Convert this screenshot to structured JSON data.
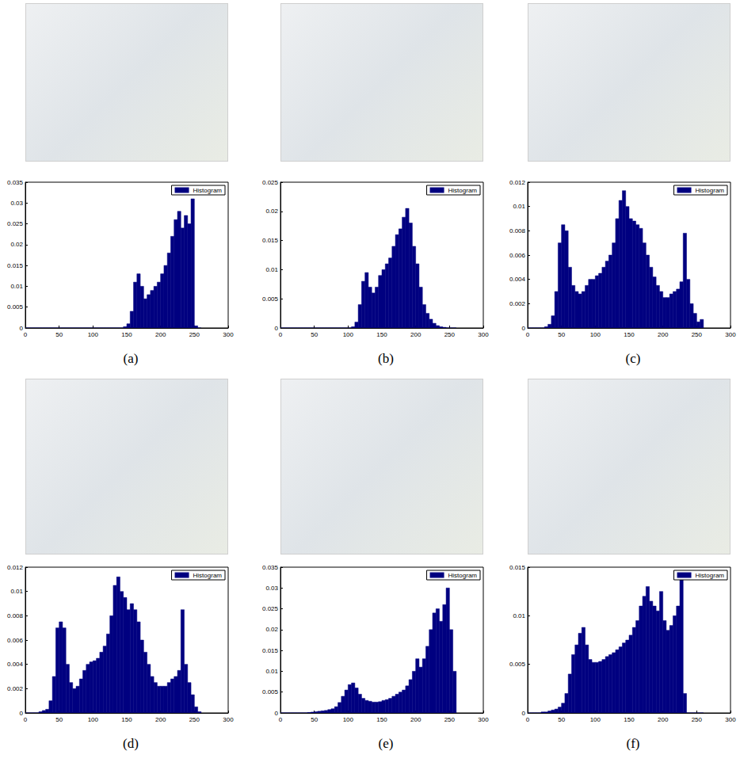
{
  "chart_data": [
    {
      "type": "histogram",
      "title": "(a)",
      "legend": "upper right",
      "grid": false,
      "xlim": [
        0,
        300
      ],
      "xticks": [
        0,
        50,
        100,
        150,
        200,
        250,
        300
      ],
      "ylim": [
        0,
        0.035
      ],
      "yticks": [
        0,
        0.005,
        0.01,
        0.015,
        0.02,
        0.025,
        0.03,
        0.035
      ],
      "bins": [
        0,
        5,
        10,
        15,
        20,
        25,
        30,
        35,
        40,
        45,
        50,
        55,
        60,
        65,
        70,
        75,
        80,
        85,
        90,
        95,
        100,
        105,
        110,
        115,
        120,
        125,
        130,
        135,
        140,
        145,
        150,
        155,
        160,
        165,
        170,
        175,
        180,
        185,
        190,
        195,
        200,
        205,
        210,
        215,
        220,
        225,
        230,
        235,
        240,
        245,
        250,
        255,
        260
      ],
      "series": [
        {
          "name": "Histogram",
          "color": "#000080",
          "values": [
            0,
            0,
            0,
            0,
            0,
            0,
            0,
            0,
            0,
            0,
            0,
            0,
            0,
            0,
            0,
            0,
            0,
            0,
            0,
            0,
            0,
            0,
            0,
            0,
            0,
            0,
            0,
            0,
            0,
            0.0003,
            0.001,
            0.004,
            0.011,
            0.013,
            0.01,
            0.007,
            0.008,
            0.009,
            0.01,
            0.011,
            0.013,
            0.015,
            0.018,
            0.022,
            0.026,
            0.028,
            0.024,
            0.027,
            0.025,
            0.031,
            0.0005,
            0
          ]
        }
      ]
    },
    {
      "type": "histogram",
      "title": "(b)",
      "legend": "upper right",
      "grid": false,
      "xlim": [
        0,
        300
      ],
      "xticks": [
        0,
        50,
        100,
        150,
        200,
        250,
        300
      ],
      "ylim": [
        0,
        0.025
      ],
      "yticks": [
        0,
        0.005,
        0.01,
        0.015,
        0.02,
        0.025
      ],
      "bins": [
        0,
        5,
        10,
        15,
        20,
        25,
        30,
        35,
        40,
        45,
        50,
        55,
        60,
        65,
        70,
        75,
        80,
        85,
        90,
        95,
        100,
        105,
        110,
        115,
        120,
        125,
        130,
        135,
        140,
        145,
        150,
        155,
        160,
        165,
        170,
        175,
        180,
        185,
        190,
        195,
        200,
        205,
        210,
        215,
        220,
        225,
        230,
        235,
        240,
        245,
        250,
        255,
        260
      ],
      "series": [
        {
          "name": "Histogram",
          "color": "#000080",
          "values": [
            0,
            0,
            0,
            0,
            0,
            0,
            0,
            0,
            0,
            0,
            0,
            0,
            0,
            0,
            0,
            0,
            0,
            0,
            0,
            0,
            0,
            0.0002,
            0.001,
            0.004,
            0.008,
            0.0095,
            0.007,
            0.006,
            0.007,
            0.009,
            0.01,
            0.011,
            0.012,
            0.014,
            0.016,
            0.017,
            0.019,
            0.0205,
            0.018,
            0.014,
            0.011,
            0.007,
            0.004,
            0.0025,
            0.0015,
            0.0008,
            0.0004,
            0.0002,
            0.0001,
            0,
            0,
            0
          ]
        }
      ]
    },
    {
      "type": "histogram",
      "title": "(c)",
      "legend": "upper right",
      "grid": false,
      "xlim": [
        0,
        300
      ],
      "xticks": [
        0,
        50,
        100,
        150,
        200,
        250,
        300
      ],
      "ylim": [
        0,
        0.012
      ],
      "yticks": [
        0,
        0.002,
        0.004,
        0.006,
        0.008,
        0.01,
        0.012
      ],
      "bins": [
        0,
        5,
        10,
        15,
        20,
        25,
        30,
        35,
        40,
        45,
        50,
        55,
        60,
        65,
        70,
        75,
        80,
        85,
        90,
        95,
        100,
        105,
        110,
        115,
        120,
        125,
        130,
        135,
        140,
        145,
        150,
        155,
        160,
        165,
        170,
        175,
        180,
        185,
        190,
        195,
        200,
        205,
        210,
        215,
        220,
        225,
        230,
        235,
        240,
        245,
        250,
        255,
        260
      ],
      "series": [
        {
          "name": "Histogram",
          "color": "#000080",
          "values": [
            0,
            0,
            0,
            0,
            0,
            0.0001,
            0.0003,
            0.001,
            0.003,
            0.007,
            0.0085,
            0.008,
            0.005,
            0.0035,
            0.003,
            0.0028,
            0.003,
            0.0035,
            0.004,
            0.004,
            0.0043,
            0.0045,
            0.005,
            0.0055,
            0.006,
            0.007,
            0.009,
            0.0105,
            0.0113,
            0.01,
            0.009,
            0.0088,
            0.0085,
            0.0082,
            0.007,
            0.006,
            0.005,
            0.0042,
            0.0035,
            0.003,
            0.0025,
            0.0025,
            0.0028,
            0.003,
            0.0032,
            0.0038,
            0.0078,
            0.004,
            0.002,
            0.0012,
            0.0005,
            0.0007
          ]
        }
      ]
    },
    {
      "type": "histogram",
      "title": "(d)",
      "legend": "upper right",
      "grid": false,
      "xlim": [
        0,
        300
      ],
      "xticks": [
        0,
        50,
        100,
        150,
        200,
        250,
        300
      ],
      "ylim": [
        0,
        0.012
      ],
      "yticks": [
        0,
        0.002,
        0.004,
        0.006,
        0.008,
        0.01,
        0.012
      ],
      "bins": [
        0,
        5,
        10,
        15,
        20,
        25,
        30,
        35,
        40,
        45,
        50,
        55,
        60,
        65,
        70,
        75,
        80,
        85,
        90,
        95,
        100,
        105,
        110,
        115,
        120,
        125,
        130,
        135,
        140,
        145,
        150,
        155,
        160,
        165,
        170,
        175,
        180,
        185,
        190,
        195,
        200,
        205,
        210,
        215,
        220,
        225,
        230,
        235,
        240,
        245,
        250,
        255,
        260
      ],
      "series": [
        {
          "name": "Histogram",
          "color": "#000080",
          "values": [
            0,
            0,
            0,
            0,
            0.0001,
            0.0002,
            0.0003,
            0.001,
            0.003,
            0.007,
            0.0075,
            0.007,
            0.004,
            0.0025,
            0.002,
            0.0022,
            0.0028,
            0.0035,
            0.004,
            0.0042,
            0.0043,
            0.0045,
            0.005,
            0.0055,
            0.0065,
            0.008,
            0.0105,
            0.0112,
            0.01,
            0.0095,
            0.0085,
            0.009,
            0.0085,
            0.0075,
            0.006,
            0.005,
            0.004,
            0.003,
            0.0025,
            0.0022,
            0.0022,
            0.0022,
            0.0025,
            0.0028,
            0.003,
            0.0035,
            0.0085,
            0.004,
            0.0025,
            0.0015,
            0.0005,
            0.0001
          ]
        }
      ]
    },
    {
      "type": "histogram",
      "title": "(e)",
      "legend": "upper right",
      "grid": false,
      "xlim": [
        0,
        300
      ],
      "xticks": [
        0,
        50,
        100,
        150,
        200,
        250,
        300
      ],
      "ylim": [
        0,
        0.035
      ],
      "yticks": [
        0,
        0.005,
        0.01,
        0.015,
        0.02,
        0.025,
        0.03,
        0.035
      ],
      "bins": [
        0,
        5,
        10,
        15,
        20,
        25,
        30,
        35,
        40,
        45,
        50,
        55,
        60,
        65,
        70,
        75,
        80,
        85,
        90,
        95,
        100,
        105,
        110,
        115,
        120,
        125,
        130,
        135,
        140,
        145,
        150,
        155,
        160,
        165,
        170,
        175,
        180,
        185,
        190,
        195,
        200,
        205,
        210,
        215,
        220,
        225,
        230,
        235,
        240,
        245,
        250,
        255,
        260
      ],
      "series": [
        {
          "name": "Histogram",
          "color": "#000080",
          "values": [
            0,
            0,
            0,
            0,
            0,
            0,
            0,
            0,
            0.0001,
            0.0002,
            0.0003,
            0.0004,
            0.0005,
            0.0006,
            0.0008,
            0.001,
            0.0015,
            0.0025,
            0.004,
            0.0055,
            0.0068,
            0.0072,
            0.006,
            0.0045,
            0.0035,
            0.003,
            0.0028,
            0.0026,
            0.0026,
            0.0027,
            0.003,
            0.0032,
            0.0035,
            0.004,
            0.0045,
            0.005,
            0.0055,
            0.0065,
            0.008,
            0.01,
            0.013,
            0.011,
            0.013,
            0.016,
            0.02,
            0.024,
            0.025,
            0.022,
            0.026,
            0.03,
            0.02,
            0.01
          ]
        }
      ]
    },
    {
      "type": "histogram",
      "title": "(f)",
      "legend": "upper right",
      "grid": false,
      "xlim": [
        0,
        300
      ],
      "xticks": [
        0,
        50,
        100,
        150,
        200,
        250,
        300
      ],
      "ylim": [
        0,
        0.015
      ],
      "yticks": [
        0,
        0.005,
        0.01,
        0.015
      ],
      "bins": [
        0,
        5,
        10,
        15,
        20,
        25,
        30,
        35,
        40,
        45,
        50,
        55,
        60,
        65,
        70,
        75,
        80,
        85,
        90,
        95,
        100,
        105,
        110,
        115,
        120,
        125,
        130,
        135,
        140,
        145,
        150,
        155,
        160,
        165,
        170,
        175,
        180,
        185,
        190,
        195,
        200,
        205,
        210,
        215,
        220,
        225,
        230,
        235,
        240,
        245,
        250,
        255,
        260
      ],
      "series": [
        {
          "name": "Histogram",
          "color": "#000080",
          "values": [
            0,
            0,
            0,
            0,
            0.0001,
            0.0001,
            0.0002,
            0.0003,
            0.0004,
            0.0006,
            0.001,
            0.002,
            0.004,
            0.006,
            0.007,
            0.0082,
            0.0088,
            0.007,
            0.0055,
            0.0052,
            0.0052,
            0.0053,
            0.0055,
            0.0058,
            0.006,
            0.0062,
            0.0065,
            0.0068,
            0.0072,
            0.0075,
            0.008,
            0.0088,
            0.0095,
            0.011,
            0.012,
            0.013,
            0.0115,
            0.011,
            0.0105,
            0.0125,
            0.0095,
            0.0085,
            0.009,
            0.01,
            0.011,
            0.014,
            0.002,
            0,
            0,
            0,
            0,
            0
          ]
        }
      ]
    }
  ]
}
